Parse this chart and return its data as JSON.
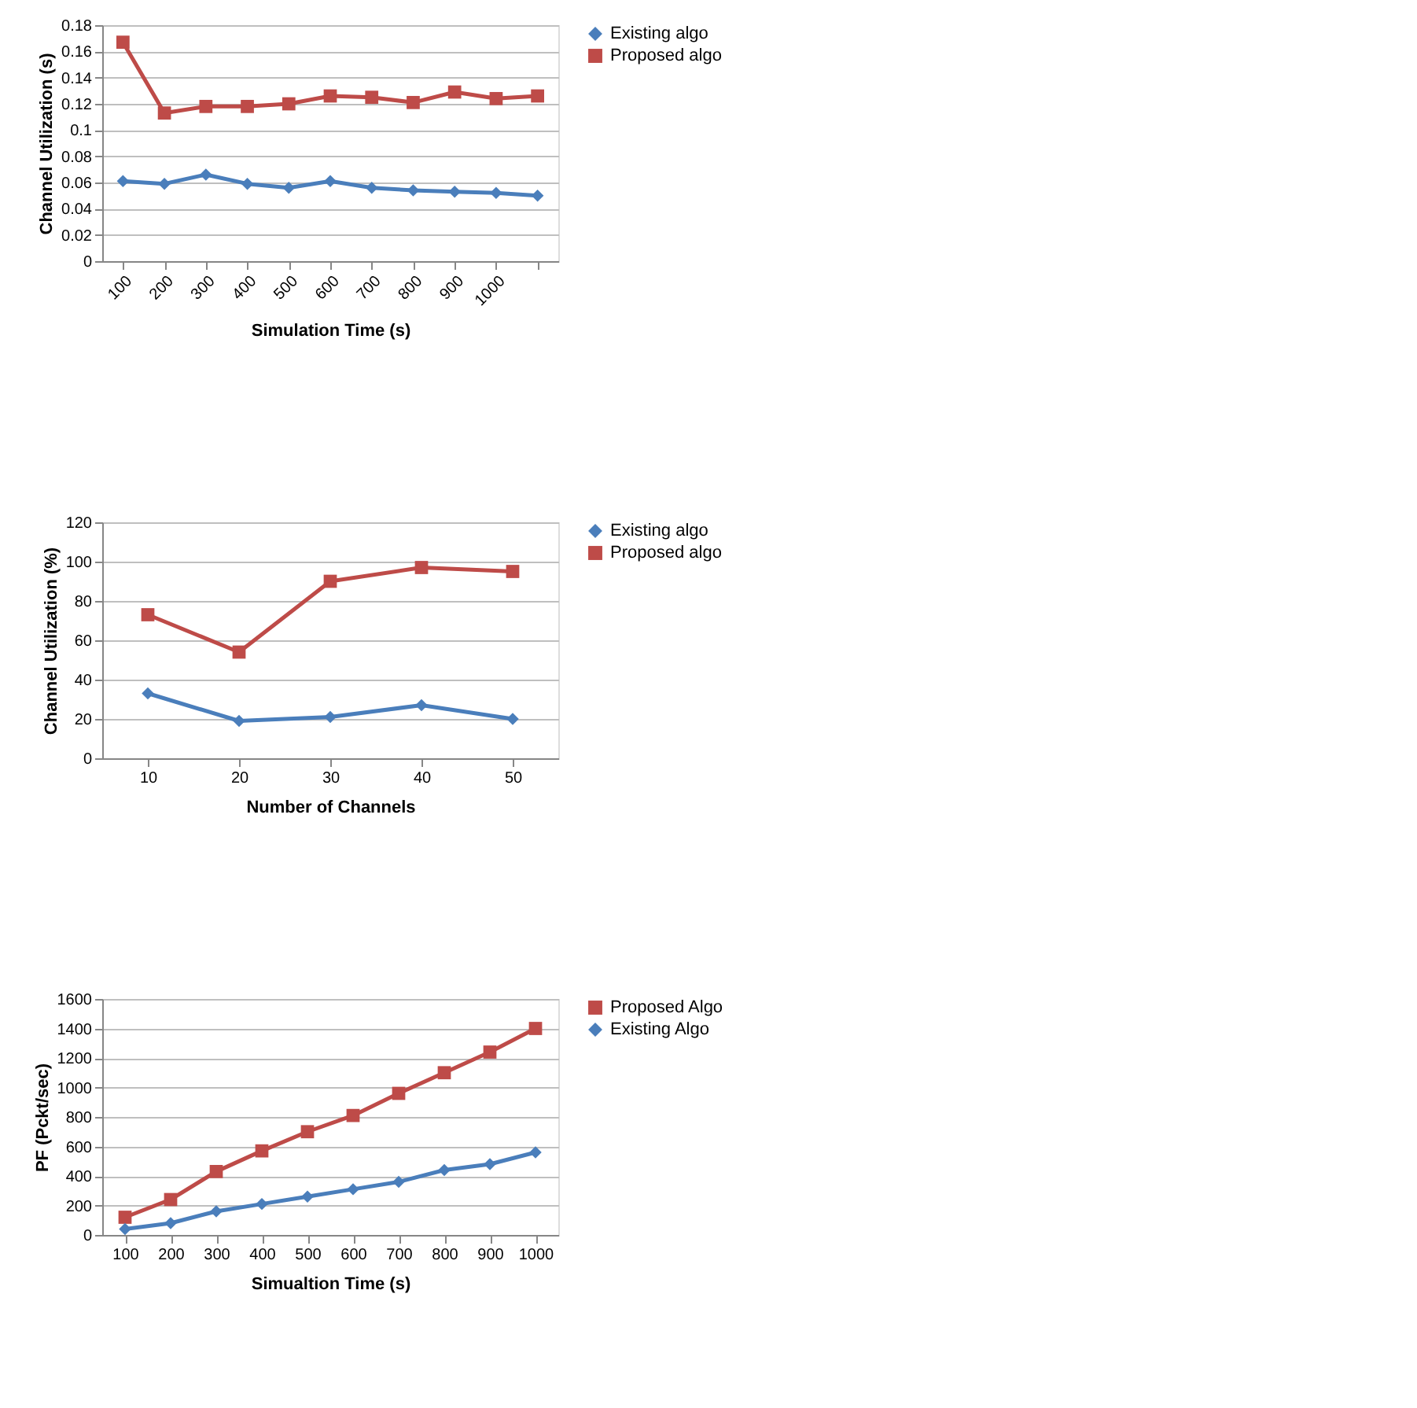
{
  "chart_data": [
    {
      "type": "line",
      "xlabel": "Simulation Time (s)",
      "ylabel": "Channel Utilization (s)",
      "categories": [
        "100",
        "200",
        "300",
        "400",
        "500",
        "600",
        "700",
        "800",
        "900",
        "1000",
        null
      ],
      "ylim": [
        0,
        0.18
      ],
      "yticks": [
        0,
        0.02,
        0.04,
        0.06,
        0.08,
        0.1,
        0.12,
        0.14,
        0.16,
        0.18
      ],
      "grid": "y",
      "legend": "right",
      "series": [
        {
          "name": "Existing algo",
          "color": "#4a7ebb",
          "marker": "diamond",
          "values": [
            0.061,
            0.059,
            0.066,
            0.059,
            0.056,
            0.061,
            0.056,
            0.054,
            0.053,
            0.052,
            0.05
          ]
        },
        {
          "name": "Proposed algo",
          "color": "#be4b48",
          "marker": "square",
          "values": [
            0.167,
            0.113,
            0.118,
            0.118,
            0.12,
            0.126,
            0.125,
            0.121,
            0.129,
            0.124,
            0.126
          ]
        }
      ]
    },
    {
      "type": "line",
      "xlabel": "Number of Channels",
      "ylabel": "Channel Utilization (%)",
      "categories": [
        "10",
        "20",
        "30",
        "40",
        "50"
      ],
      "ylim": [
        0,
        120
      ],
      "yticks": [
        0,
        20,
        40,
        60,
        80,
        100,
        120
      ],
      "grid": "y",
      "legend": "right",
      "series": [
        {
          "name": "Existing algo",
          "color": "#4a7ebb",
          "marker": "diamond",
          "values": [
            33,
            19,
            21,
            27,
            20
          ]
        },
        {
          "name": "Proposed algo",
          "color": "#be4b48",
          "marker": "square",
          "values": [
            73,
            54,
            90,
            97,
            95
          ]
        }
      ]
    },
    {
      "type": "line",
      "xlabel": "Simualtion Time (s)",
      "ylabel": "PF (Pckt/sec)",
      "categories": [
        "100",
        "200",
        "300",
        "400",
        "500",
        "600",
        "700",
        "800",
        "900",
        "1000"
      ],
      "ylim": [
        0,
        1600
      ],
      "yticks": [
        0,
        200,
        400,
        600,
        800,
        1000,
        1200,
        1400,
        1600
      ],
      "grid": "y",
      "legend": "right",
      "series": [
        {
          "name": "Proposed Algo",
          "color": "#be4b48",
          "marker": "square",
          "values": [
            120,
            240,
            430,
            570,
            700,
            810,
            960,
            1100,
            1240,
            1400
          ]
        },
        {
          "name": "Existing Algo",
          "color": "#4a7ebb",
          "marker": "diamond",
          "values": [
            40,
            80,
            160,
            210,
            260,
            310,
            360,
            440,
            480,
            560
          ]
        }
      ]
    }
  ]
}
